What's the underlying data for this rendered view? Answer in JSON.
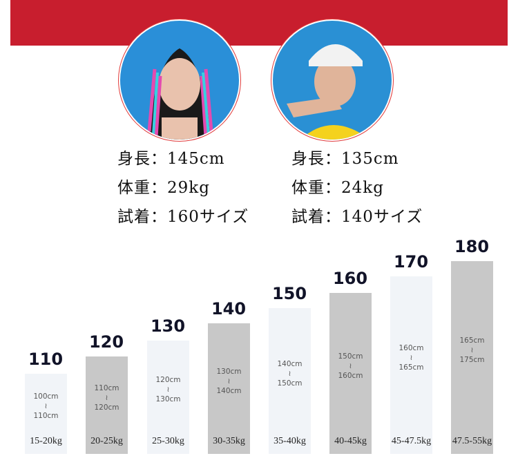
{
  "colors": {
    "band": "#c81e2e",
    "bar_light": "#f1f4f8",
    "bar_dark": "#c8c8c8"
  },
  "models": [
    {
      "height": "身長：145cm",
      "weight": "体重：29kg",
      "tried": "試着：160サイズ"
    },
    {
      "height": "身長：135cm",
      "weight": "体重：24kg",
      "tried": "試着：140サイズ"
    }
  ],
  "sizes": [
    {
      "size": "110",
      "from": "100cm",
      "sep": "≀",
      "to": "110cm",
      "kg": "15-20kg",
      "shade": "light"
    },
    {
      "size": "120",
      "from": "110cm",
      "sep": "≀",
      "to": "120cm",
      "kg": "20-25kg",
      "shade": "dark"
    },
    {
      "size": "130",
      "from": "120cm",
      "sep": "≀",
      "to": "130cm",
      "kg": "25-30kg",
      "shade": "light"
    },
    {
      "size": "140",
      "from": "130cm",
      "sep": "≀",
      "to": "140cm",
      "kg": "30-35kg",
      "shade": "dark"
    },
    {
      "size": "150",
      "from": "140cm",
      "sep": "≀",
      "to": "150cm",
      "kg": "35-40kg",
      "shade": "light"
    },
    {
      "size": "160",
      "from": "150cm",
      "sep": "≀",
      "to": "160cm",
      "kg": "40-45kg",
      "shade": "dark"
    },
    {
      "size": "170",
      "from": "160cm",
      "sep": "≀",
      "to": "165cm",
      "kg": "45-47.5kg",
      "shade": "light"
    },
    {
      "size": "180",
      "from": "165cm",
      "sep": "≀",
      "to": "175cm",
      "kg": "47.5-55kg",
      "shade": "dark"
    }
  ]
}
